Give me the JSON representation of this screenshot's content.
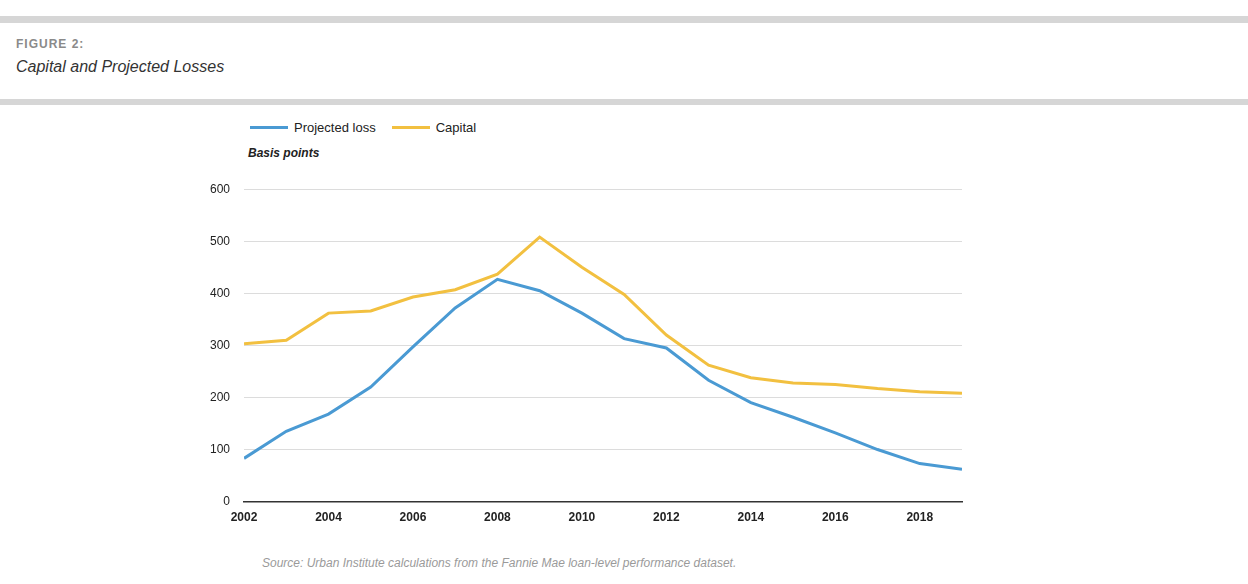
{
  "chart_data": {
    "type": "line",
    "figure_label": "FIGURE 2:",
    "title": "Capital and Projected Losses",
    "y_label": "Basis points",
    "source": "Source: Urban Institute calculations from the Fannie Mae loan-level performance dataset.",
    "x": [
      2002,
      2003,
      2004,
      2005,
      2006,
      2007,
      2008,
      2009,
      2010,
      2011,
      2012,
      2013,
      2014,
      2015,
      2016,
      2017,
      2018,
      2019
    ],
    "series": [
      {
        "name": "Projected loss",
        "color": "#4a9ad3",
        "values": [
          83,
          135,
          168,
          220,
          297,
          372,
          427,
          405,
          362,
          313,
          295,
          233,
          190,
          162,
          132,
          100,
          73,
          62
        ]
      },
      {
        "name": "Capital",
        "color": "#f2c040",
        "values": [
          303,
          310,
          362,
          366,
          393,
          407,
          437,
          508,
          450,
          398,
          320,
          262,
          238,
          228,
          225,
          217,
          211,
          208
        ]
      }
    ],
    "xlim": [
      2002,
      2019
    ],
    "xticks": [
      2002,
      2004,
      2006,
      2008,
      2010,
      2012,
      2014,
      2016,
      2018
    ],
    "ylim": [
      0,
      600
    ],
    "yticks": [
      0,
      100,
      200,
      300,
      400,
      500,
      600
    ],
    "grid": true,
    "legend": "top-left"
  }
}
